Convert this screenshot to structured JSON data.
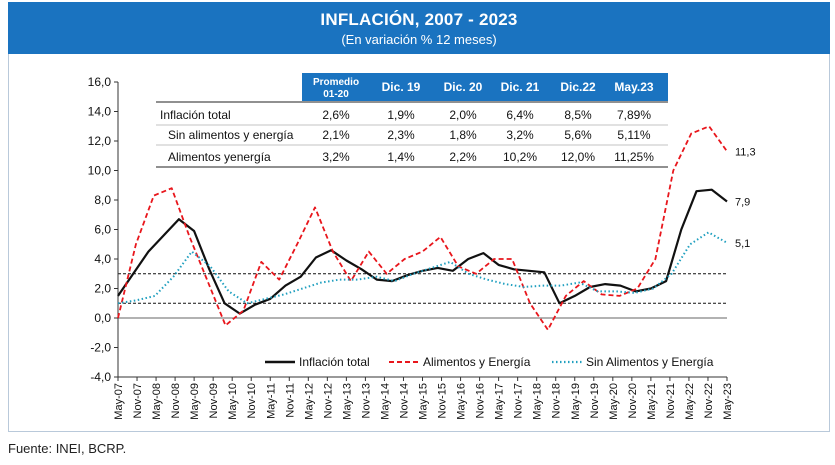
{
  "header": {
    "title": "INFLACIÓN, 2007 - 2023",
    "subtitle": "(En variación % 12 meses)"
  },
  "source": "Fuente: INEI, BCRP.",
  "colors": {
    "header_bg": "#1a73c0",
    "table_header_bg": "#1a73c0",
    "total": "#111111",
    "food_energy": "#e8161c",
    "core": "#1f9fbf",
    "reference_lines": "#111111"
  },
  "table": {
    "header": [
      "",
      "Promedio 01-20",
      "Dic. 19",
      "Dic. 20",
      "Dic. 21",
      "Dic.22",
      "May.23"
    ],
    "rows": [
      {
        "label": "Inflación total",
        "values": [
          "2,6%",
          "1,9%",
          "2,0%",
          "6,4%",
          "8,5%",
          "7,89%"
        ]
      },
      {
        "label": "Sin alimentos y energía",
        "values": [
          "2,1%",
          "2,3%",
          "1,8%",
          "3,2%",
          "5,6%",
          "5,11%"
        ]
      },
      {
        "label": "Alimentos yenergía",
        "values": [
          "3,2%",
          "1,4%",
          "2,2%",
          "10,2%",
          "12,0%",
          "11,25%"
        ]
      }
    ]
  },
  "chart_data": {
    "type": "line",
    "title": "INFLACIÓN, 2007 - 2023",
    "subtitle": "(En variación % 12 meses)",
    "ylim": [
      -4,
      16
    ],
    "yticks": [
      "-4,0",
      "-2,0",
      "0,0",
      "2,0",
      "4,0",
      "6,0",
      "8,0",
      "10,0",
      "12,0",
      "14,0",
      "16,0"
    ],
    "xticks": [
      "May-07",
      "Nov-07",
      "May-08",
      "Nov-08",
      "May-09",
      "Nov-09",
      "May-10",
      "Nov-10",
      "May-11",
      "Nov-11",
      "May-12",
      "Nov-12",
      "May-13",
      "Nov-13",
      "May-14",
      "Nov-14",
      "May-15",
      "Nov-15",
      "May-16",
      "Nov-16",
      "May-17",
      "Nov-17",
      "May-18",
      "Nov-18",
      "May-19",
      "Nov-19",
      "May-20",
      "Nov-20",
      "May-21",
      "Nov-21",
      "May-22",
      "Nov-22",
      "May-23"
    ],
    "reference_lines": [
      1,
      3
    ],
    "end_labels": [
      "11,3",
      "7,9",
      "5,1"
    ],
    "series": [
      {
        "name": "Inflación total",
        "style": "solid",
        "values": [
          1.5,
          3.0,
          4.5,
          5.6,
          6.7,
          5.9,
          3.3,
          1.0,
          0.3,
          0.9,
          1.3,
          2.2,
          2.8,
          4.1,
          4.6,
          3.9,
          3.3,
          2.6,
          2.5,
          2.9,
          3.2,
          3.4,
          3.2,
          4.0,
          4.4,
          3.6,
          3.3,
          3.2,
          3.1,
          1.0,
          1.5,
          2.1,
          2.3,
          2.2,
          1.8,
          2.0,
          2.5,
          6.0,
          8.6,
          8.7,
          7.9
        ]
      },
      {
        "name": "Alimentos y Energía",
        "style": "dashed",
        "values": [
          0.0,
          5.0,
          8.3,
          8.8,
          5.5,
          2.5,
          -0.5,
          0.5,
          3.8,
          2.6,
          5.0,
          7.5,
          4.5,
          2.5,
          4.5,
          3.0,
          4.0,
          4.5,
          5.5,
          3.5,
          3.0,
          4.0,
          4.0,
          1.0,
          -0.8,
          1.5,
          2.5,
          1.6,
          1.5,
          2.0,
          4.0,
          10.0,
          12.5,
          13.0,
          11.3
        ]
      },
      {
        "name": "Sin Alimentos y Energía",
        "style": "dotted",
        "values": [
          1.0,
          1.2,
          1.5,
          2.8,
          4.5,
          3.5,
          1.8,
          1.0,
          1.3,
          1.6,
          2.0,
          2.4,
          2.6,
          2.6,
          2.8,
          2.5,
          3.0,
          3.4,
          3.8,
          3.0,
          2.6,
          2.3,
          2.1,
          2.2,
          2.2,
          2.4,
          1.8,
          1.8,
          1.7,
          2.0,
          3.0,
          5.0,
          5.8,
          5.1
        ]
      }
    ],
    "legend": {
      "position": "bottom-center",
      "entries": [
        "Inflación total",
        "Alimentos y Energía",
        "Sin Alimentos y Energía"
      ]
    }
  }
}
